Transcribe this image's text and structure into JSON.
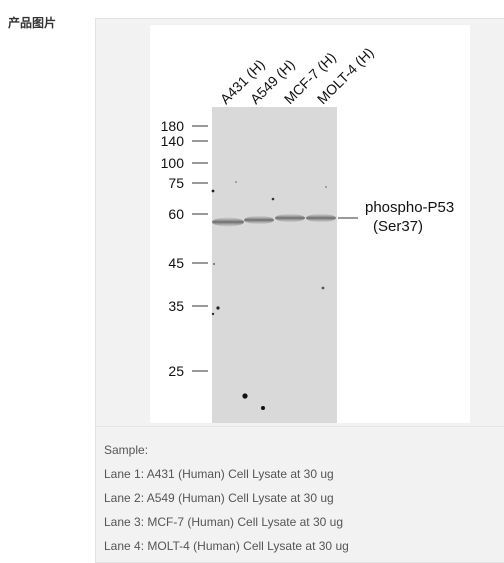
{
  "section_label": "产品图片",
  "blot": {
    "lanes": [
      "A431 (H)",
      "A549 (H)",
      "MCF-7 (H)",
      "MOLT-4 (H)"
    ],
    "markers": [
      "180",
      "140",
      "100",
      "75",
      "60",
      "45",
      "35",
      "25"
    ],
    "band_label_line1": "phospho-P53",
    "band_label_line2": "(Ser37)"
  },
  "caption": {
    "sample_heading": "Sample:",
    "lanes": [
      "Lane 1: A431 (Human) Cell Lysate at 30 ug",
      "Lane 2: A549 (Human) Cell Lysate at 30 ug",
      "Lane 3: MCF-7 (Human) Cell Lysate at 30 ug",
      "Lane 4: MOLT-4 (Human) Cell Lysate at 30 ug"
    ]
  }
}
